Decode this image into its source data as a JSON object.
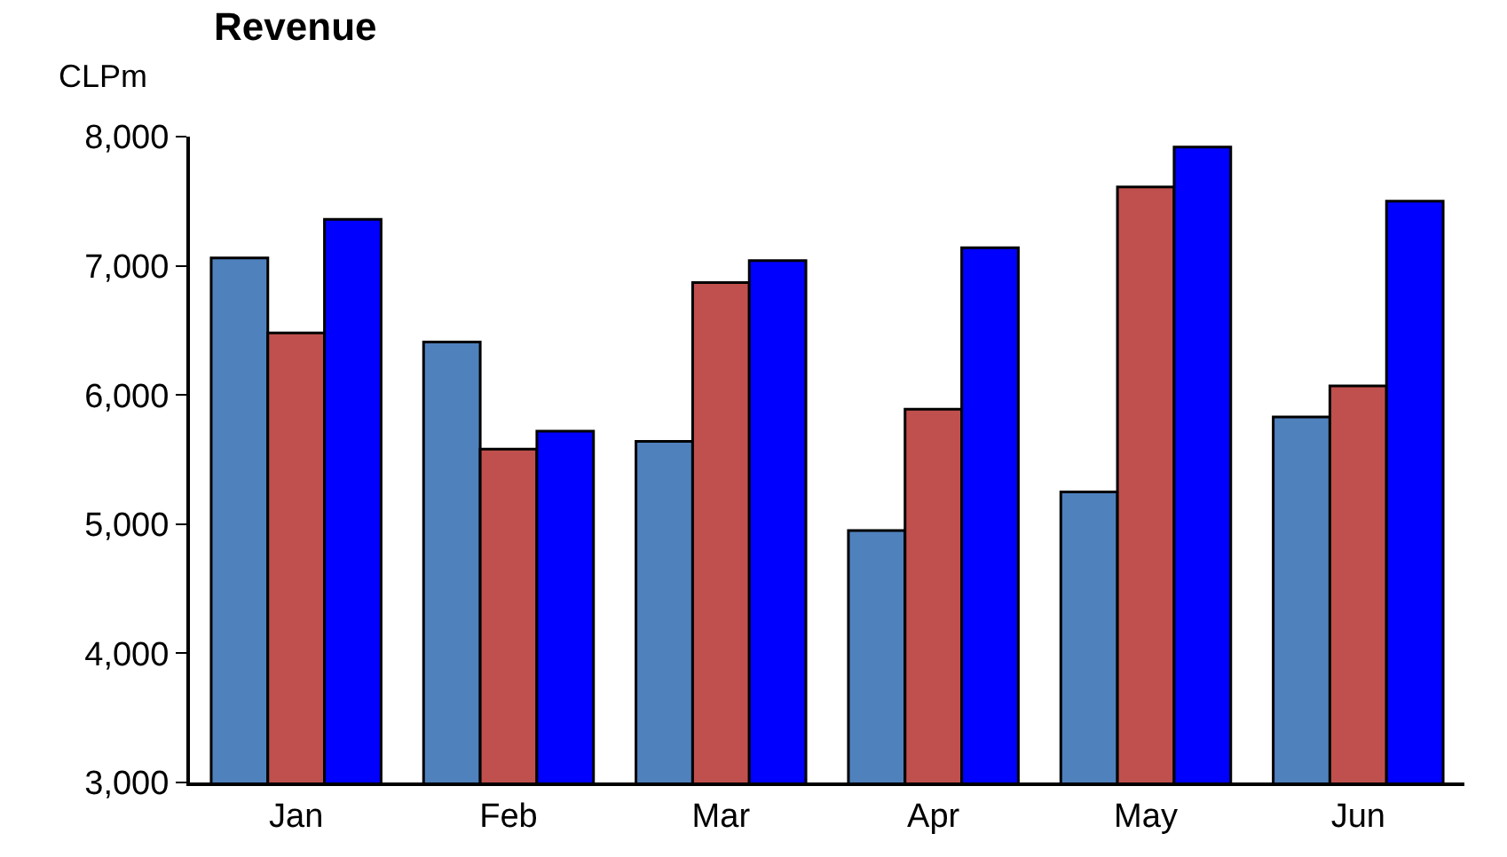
{
  "chart_data": {
    "type": "bar",
    "title": "Revenue",
    "ylabel": "CLPm",
    "categories": [
      "Jan",
      "Feb",
      "Mar",
      "Apr",
      "May",
      "Jun"
    ],
    "series": [
      {
        "color": "#4f81bd",
        "values": [
          7060,
          6410,
          5640,
          4950,
          5250,
          5830
        ]
      },
      {
        "color": "#c0504d",
        "values": [
          6480,
          5580,
          6870,
          5890,
          7610,
          6070
        ]
      },
      {
        "color": "#0000ff",
        "values": [
          7360,
          5720,
          7040,
          7140,
          7920,
          7500
        ]
      }
    ],
    "ylim": [
      3000,
      8000
    ],
    "yticks": [
      {
        "value": 3000,
        "label": "3,000"
      },
      {
        "value": 4000,
        "label": "4,000"
      },
      {
        "value": 5000,
        "label": "5,000"
      },
      {
        "value": 6000,
        "label": "6,000"
      },
      {
        "value": 7000,
        "label": "7,000"
      },
      {
        "value": 8000,
        "label": "8,000"
      }
    ]
  }
}
